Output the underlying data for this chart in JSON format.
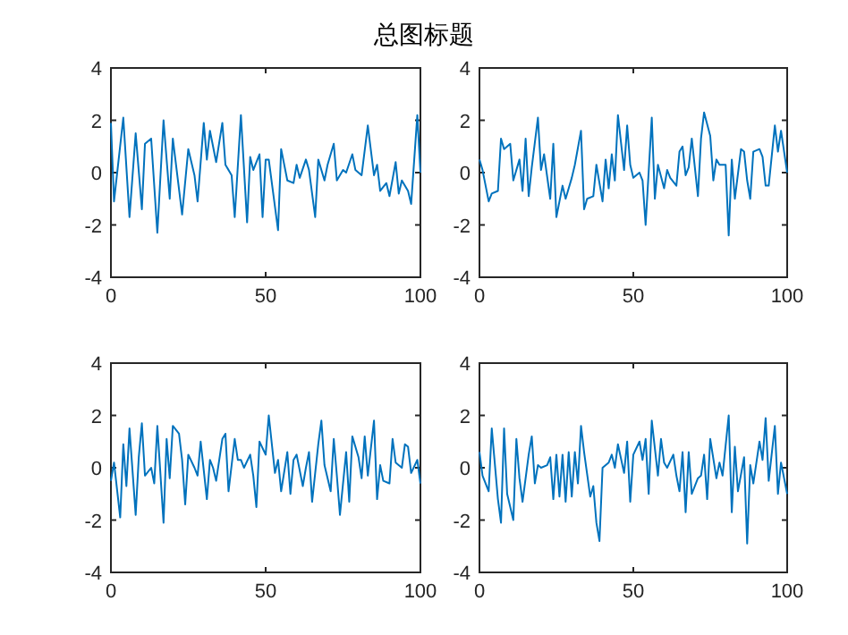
{
  "chart_data": [
    {
      "type": "line",
      "title": "总图标题",
      "xlim": [
        0,
        100
      ],
      "ylim": [
        -4,
        4
      ],
      "xticks": [
        0,
        50,
        100
      ],
      "yticks": [
        -4,
        -2,
        0,
        2,
        4
      ],
      "grid": false,
      "x": [
        0,
        1,
        4,
        6,
        8,
        10,
        11,
        13,
        15,
        17,
        19,
        20,
        23,
        25,
        27,
        28,
        30,
        31,
        32,
        34,
        36,
        37,
        39,
        40,
        42,
        44,
        45,
        46,
        48,
        49,
        50,
        51,
        54,
        55,
        57,
        59,
        60,
        61,
        63,
        64,
        66,
        67,
        69,
        70,
        72,
        73,
        75,
        76,
        78,
        79,
        81,
        83,
        85,
        86,
        87,
        89,
        90,
        92,
        93,
        94,
        96,
        97,
        99,
        100
      ],
      "series": [
        {
          "color": "#0072bd",
          "values": [
            1.9,
            -1.1,
            2.1,
            -1.7,
            1.5,
            -1.4,
            1.1,
            1.3,
            -2.3,
            2.0,
            -1.0,
            1.3,
            -1.6,
            0.9,
            -0.1,
            -1.1,
            1.9,
            0.5,
            1.6,
            0.4,
            1.9,
            0.3,
            -0.1,
            -1.7,
            2.2,
            -1.9,
            0.6,
            0.1,
            0.7,
            -1.7,
            0.5,
            0.5,
            -2.2,
            0.9,
            -0.3,
            -0.4,
            0.3,
            -0.2,
            0.5,
            0.1,
            -1.7,
            0.5,
            -0.3,
            0.3,
            1.1,
            -0.3,
            0.1,
            0.0,
            0.7,
            0.1,
            -0.1,
            1.8,
            -0.1,
            0.3,
            -0.7,
            -0.4,
            -0.9,
            0.4,
            -0.8,
            -0.3,
            -0.7,
            -1.2,
            2.2,
            0.0
          ]
        }
      ]
    },
    {
      "type": "line",
      "xlim": [
        0,
        100
      ],
      "ylim": [
        -4,
        4
      ],
      "xticks": [
        0,
        50,
        100
      ],
      "yticks": [
        -4,
        -2,
        0,
        2,
        4
      ],
      "grid": false,
      "x": [
        0,
        1,
        3,
        4,
        6,
        7,
        8,
        10,
        11,
        13,
        14,
        15,
        16,
        17,
        19,
        20,
        21,
        23,
        24,
        25,
        27,
        28,
        30,
        31,
        33,
        34,
        35,
        37,
        38,
        40,
        41,
        42,
        43,
        44,
        45,
        47,
        48,
        49,
        50,
        52,
        53,
        54,
        56,
        57,
        58,
        60,
        61,
        62,
        64,
        65,
        66,
        67,
        68,
        69,
        71,
        72,
        73,
        75,
        76,
        77,
        78,
        80,
        81,
        82,
        83,
        85,
        86,
        87,
        88,
        89,
        91,
        92,
        93,
        94,
        96,
        97,
        98,
        100
      ],
      "series": [
        {
          "color": "#0072bd",
          "values": [
            0.5,
            0.1,
            -1.1,
            -0.8,
            -0.7,
            1.3,
            0.9,
            1.1,
            -0.3,
            0.5,
            -0.7,
            1.3,
            -0.9,
            0.2,
            2.1,
            0.1,
            0.7,
            -1.0,
            1.1,
            -1.7,
            -0.5,
            -1.0,
            -0.2,
            0.3,
            1.6,
            -1.4,
            -1.0,
            -0.9,
            0.3,
            -1.1,
            0.5,
            -0.6,
            0.7,
            -0.3,
            2.2,
            0.1,
            1.8,
            0.3,
            -0.2,
            0.0,
            -0.3,
            -2.0,
            2.1,
            -1.0,
            0.3,
            -0.6,
            0.1,
            -0.2,
            -0.5,
            0.8,
            1.0,
            -0.1,
            0.2,
            1.3,
            -0.9,
            1.3,
            2.3,
            1.4,
            -0.3,
            0.5,
            0.3,
            0.3,
            -2.4,
            0.5,
            -1.0,
            0.9,
            0.8,
            -0.3,
            -1.0,
            0.8,
            0.9,
            0.6,
            -0.5,
            -0.5,
            1.8,
            0.8,
            1.6,
            0.0
          ]
        }
      ]
    },
    {
      "type": "line",
      "xlim": [
        0,
        100
      ],
      "ylim": [
        -4,
        4
      ],
      "xticks": [
        0,
        50,
        100
      ],
      "yticks": [
        -4,
        -2,
        0,
        2,
        4
      ],
      "grid": false,
      "x": [
        0,
        1,
        3,
        4,
        5,
        6,
        8,
        9,
        10,
        11,
        13,
        14,
        15,
        17,
        18,
        19,
        20,
        22,
        23,
        24,
        25,
        27,
        28,
        29,
        31,
        32,
        33,
        34,
        36,
        37,
        38,
        40,
        41,
        42,
        43,
        45,
        46,
        47,
        48,
        50,
        51,
        53,
        54,
        55,
        57,
        58,
        59,
        60,
        62,
        63,
        64,
        65,
        67,
        68,
        69,
        71,
        72,
        73,
        74,
        76,
        77,
        78,
        80,
        81,
        82,
        83,
        85,
        86,
        87,
        88,
        90,
        91,
        92,
        94,
        95,
        96,
        97,
        99,
        100
      ],
      "series": [
        {
          "color": "#0072bd",
          "values": [
            -0.5,
            0.2,
            -1.9,
            0.9,
            -0.7,
            1.5,
            -1.8,
            0.4,
            1.7,
            -0.3,
            0.0,
            -0.6,
            1.6,
            -2.1,
            1.1,
            -0.4,
            1.6,
            1.3,
            0.3,
            -1.4,
            0.5,
            0.0,
            -0.3,
            1.0,
            -1.2,
            0.3,
            0.0,
            -0.5,
            1.1,
            1.3,
            -0.9,
            1.1,
            0.3,
            0.3,
            0.0,
            0.5,
            -0.3,
            -1.5,
            1.0,
            0.5,
            2.0,
            -0.2,
            0.3,
            -0.9,
            0.6,
            -1.0,
            0.3,
            0.5,
            -0.7,
            0.0,
            0.6,
            -1.3,
            0.9,
            1.8,
            0.1,
            -0.9,
            1.1,
            -0.3,
            -1.8,
            0.6,
            -1.3,
            1.2,
            0.4,
            -0.4,
            1.2,
            -0.3,
            1.8,
            -1.2,
            0.1,
            -0.5,
            -0.6,
            1.1,
            0.2,
            0.0,
            0.9,
            0.8,
            -0.2,
            0.3,
            -0.6
          ]
        }
      ]
    },
    {
      "type": "line",
      "xlim": [
        0,
        100
      ],
      "ylim": [
        -4,
        4
      ],
      "xticks": [
        0,
        50,
        100
      ],
      "yticks": [
        -4,
        -2,
        0,
        2,
        4
      ],
      "grid": false,
      "x": [
        0,
        1,
        3,
        4,
        6,
        7,
        8,
        9,
        11,
        12,
        13,
        14,
        16,
        17,
        18,
        19,
        20,
        22,
        23,
        24,
        25,
        26,
        27,
        28,
        29,
        30,
        31,
        32,
        33,
        34,
        36,
        37,
        38,
        39,
        40,
        42,
        43,
        44,
        45,
        47,
        48,
        49,
        50,
        52,
        53,
        54,
        55,
        56,
        58,
        59,
        60,
        61,
        63,
        64,
        65,
        66,
        67,
        68,
        69,
        71,
        72,
        73,
        74,
        75,
        77,
        78,
        79,
        81,
        82,
        83,
        84,
        86,
        87,
        88,
        89,
        91,
        92,
        93,
        94,
        96,
        97,
        98,
        100
      ],
      "series": [
        {
          "color": "#0072bd",
          "values": [
            0.6,
            -0.3,
            -0.9,
            1.5,
            -1.2,
            -2.1,
            1.5,
            -1.0,
            -2.0,
            1.1,
            -0.4,
            -1.3,
            0.5,
            1.2,
            -0.6,
            0.1,
            0.0,
            0.1,
            0.4,
            -1.2,
            0.5,
            -1.1,
            0.5,
            -1.3,
            0.6,
            -1.1,
            0.6,
            -0.6,
            1.6,
            0.6,
            -1.1,
            -0.7,
            -2.1,
            -2.8,
            0.0,
            0.2,
            0.5,
            0.0,
            0.9,
            -0.2,
            1.0,
            -1.3,
            0.5,
            1.0,
            0.3,
            1.1,
            -1.0,
            1.8,
            -0.3,
            1.1,
            0.2,
            0.0,
            0.5,
            -0.3,
            -0.9,
            0.6,
            -1.7,
            0.6,
            -1.0,
            -0.4,
            -0.3,
            0.5,
            -1.2,
            1.1,
            -0.4,
            0.2,
            -0.3,
            2.0,
            -1.7,
            0.8,
            -0.9,
            0.4,
            -2.9,
            0.1,
            -0.6,
            1.0,
            0.3,
            1.9,
            -0.5,
            1.6,
            -1.0,
            0.2,
            -1.0
          ]
        }
      ]
    }
  ]
}
